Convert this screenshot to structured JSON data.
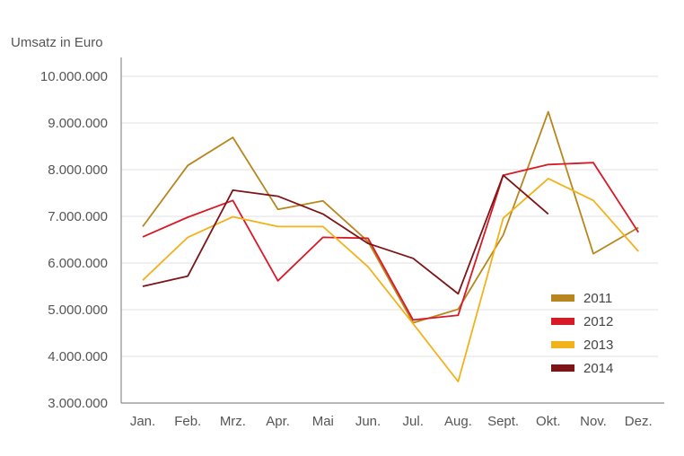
{
  "chart_data": {
    "type": "line",
    "ylabel": "Umsatz in Euro",
    "xlabel": "",
    "ylim": [
      3000000,
      10000000
    ],
    "yticks": [
      3000000,
      4000000,
      5000000,
      6000000,
      7000000,
      8000000,
      9000000,
      10000000
    ],
    "ytick_labels": [
      "3.000.000",
      "4.000.000",
      "5.000.000",
      "6.000.000",
      "7.000.000",
      "8.000.000",
      "9.000.000",
      "10.000.000"
    ],
    "categories": [
      "Jan.",
      "Feb.",
      "Mrz.",
      "Apr.",
      "Mai",
      "Jun.",
      "Jul.",
      "Aug.",
      "Sept.",
      "Okt.",
      "Nov.",
      "Dez."
    ],
    "grid": true,
    "legend_position": "lower-right",
    "series": [
      {
        "name": "2011",
        "color": "#b8861e",
        "values": [
          6780000,
          8090000,
          8690000,
          7150000,
          7330000,
          6460000,
          4720000,
          5010000,
          6600000,
          9240000,
          6200000,
          6760000
        ]
      },
      {
        "name": "2012",
        "color": "#d71a28",
        "values": [
          6560000,
          6980000,
          7340000,
          5620000,
          6550000,
          6530000,
          4780000,
          4880000,
          7880000,
          8110000,
          8150000,
          6660000
        ]
      },
      {
        "name": "2013",
        "color": "#f2b21b",
        "values": [
          5630000,
          6550000,
          6990000,
          6780000,
          6780000,
          5920000,
          4700000,
          3460000,
          6960000,
          7810000,
          7340000,
          6250000
        ]
      },
      {
        "name": "2014",
        "color": "#7d1418",
        "values": [
          5500000,
          5720000,
          7560000,
          7430000,
          7050000,
          6420000,
          6100000,
          5340000,
          7880000,
          7050000,
          null,
          null
        ]
      }
    ]
  }
}
